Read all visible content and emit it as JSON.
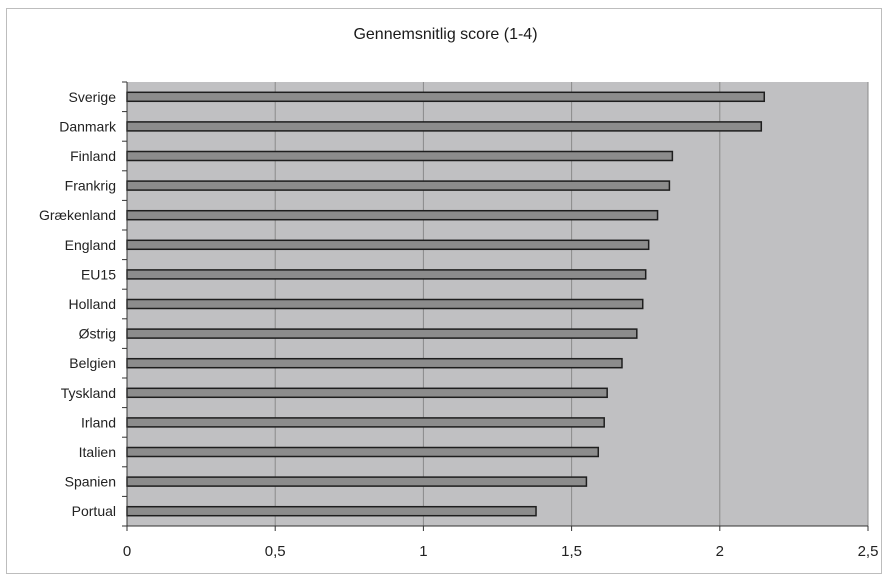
{
  "chart_data": {
    "type": "bar",
    "orientation": "horizontal",
    "title": "Gennemsnitlig score (1-4)",
    "categories": [
      "Sverige",
      "Danmark",
      "Finland",
      "Frankrig",
      "Grækenland",
      "England",
      "EU15",
      "Holland",
      "Østrig",
      "Belgien",
      "Tyskland",
      "Irland",
      "Italien",
      "Spanien",
      "Portual"
    ],
    "values": [
      2.15,
      2.14,
      1.84,
      1.83,
      1.79,
      1.76,
      1.75,
      1.74,
      1.72,
      1.67,
      1.62,
      1.61,
      1.59,
      1.55,
      1.38
    ],
    "xlim": [
      0,
      2.5
    ],
    "xticks": [
      0,
      0.5,
      1,
      1.5,
      2,
      2.5
    ],
    "xtick_labels": [
      "0",
      "0,5",
      "1",
      "1,5",
      "2",
      "2,5"
    ],
    "xlabel": "",
    "ylabel": "",
    "grid": "vertical",
    "colors": {
      "plot_background": "#c0c0c2",
      "bar_fill": "#8c8c8c",
      "bar_stroke": "#1e1e1e",
      "grid_line": "#8a8a8a"
    }
  }
}
